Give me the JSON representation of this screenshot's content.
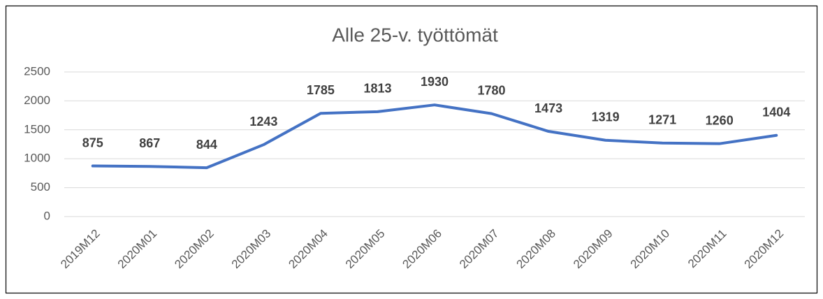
{
  "chart_data": {
    "type": "line",
    "title": "Alle 25-v. työttömät",
    "categories": [
      "2019M12",
      "2020M01",
      "2020M02",
      "2020M03",
      "2020M04",
      "2020M05",
      "2020M06",
      "2020M07",
      "2020M08",
      "2020M09",
      "2020M10",
      "2020M11",
      "2020M12"
    ],
    "series": [
      {
        "name": "Alle 25-v. työttömät",
        "color": "#4472c4",
        "values": [
          875,
          867,
          844,
          1243,
          1785,
          1813,
          1930,
          1780,
          1473,
          1319,
          1271,
          1260,
          1404
        ]
      }
    ],
    "ylim": [
      0,
      2500
    ],
    "yticks": [
      0,
      500,
      1000,
      1500,
      2000,
      2500
    ],
    "grid": true
  }
}
